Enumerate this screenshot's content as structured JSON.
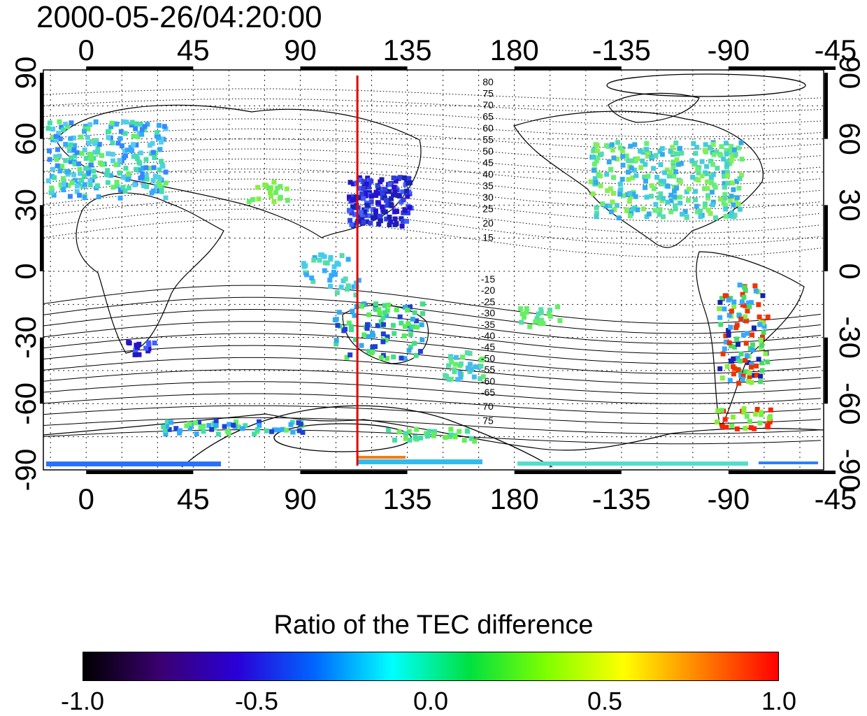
{
  "title": "2000-05-26/04:20:00",
  "map": {
    "projection": "equirectangular, centered near 160E",
    "lon_ticks": [
      "0",
      "45",
      "90",
      "135",
      "180",
      "-135",
      "-90",
      "-45"
    ],
    "lat_ticks": [
      "90",
      "60",
      "30",
      "0",
      "-30",
      "-60",
      "-90"
    ],
    "meridian_marker_lon": 114,
    "meridian_marker_color": "#e00000",
    "contour_labels_north": [
      "80",
      "75",
      "70",
      "65",
      "60",
      "55",
      "50",
      "45",
      "40",
      "35",
      "30",
      "25",
      "20",
      "15"
    ],
    "contour_labels_south": [
      "-15",
      "-20",
      "-25",
      "-30",
      "-35",
      "-40",
      "-45",
      "-50",
      "-55",
      "-60",
      "-65",
      "70",
      "75"
    ]
  },
  "colorbar": {
    "title": "Ratio of the TEC difference",
    "min": -1.0,
    "max": 1.0,
    "tick_labels": [
      "-1.0",
      "-0.5",
      "0.0",
      "0.5",
      "1.0"
    ],
    "colors": [
      "#000000",
      "#3a0070",
      "#2a00d8",
      "#0066ff",
      "#00ffff",
      "#00e040",
      "#80ff00",
      "#ffff00",
      "#ff8000",
      "#ff0000"
    ]
  }
}
